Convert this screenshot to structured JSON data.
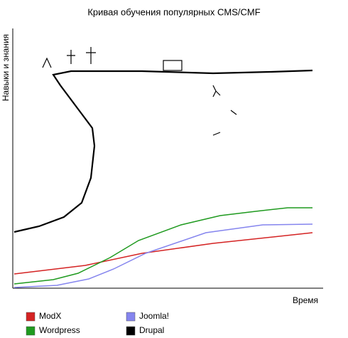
{
  "chart_data": {
    "type": "line",
    "title": "Кривая обучения популярных CMS/CMF",
    "x_label": "Время",
    "y_label": "Навыки и знания",
    "xlim": [
      0,
      437
    ],
    "ylim": [
      0,
      365
    ],
    "series": [
      {
        "name": "ModX",
        "color": "#d42323",
        "x": [
          2,
          102,
          182,
          282,
          422
        ],
        "values": [
          20,
          32,
          49,
          63,
          78
        ]
      },
      {
        "name": "Joomla!",
        "color": "#8585ee",
        "x": [
          2,
          62,
          107,
          142,
          187,
          272,
          352,
          422
        ],
        "values": [
          1,
          4,
          13,
          27,
          49,
          78,
          89,
          90
        ]
      },
      {
        "name": "Wordpress",
        "color": "#1f9a1f",
        "x": [
          2,
          57,
          92,
          137,
          177,
          237,
          292,
          342,
          387,
          422
        ],
        "values": [
          6,
          12,
          21,
          43,
          67,
          89,
          102,
          108,
          113,
          113
        ]
      },
      {
        "name": "Drupal",
        "color": "#000000",
        "x": [
          2,
          37,
          72,
          97,
          110,
          115,
          112,
          97,
          82,
          67,
          57,
          82,
          182,
          282,
          362,
          422
        ],
        "values": [
          79,
          87,
          100,
          120,
          155,
          200,
          225,
          245,
          265,
          285,
          300,
          305,
          305,
          302,
          304,
          306
        ]
      }
    ]
  }
}
